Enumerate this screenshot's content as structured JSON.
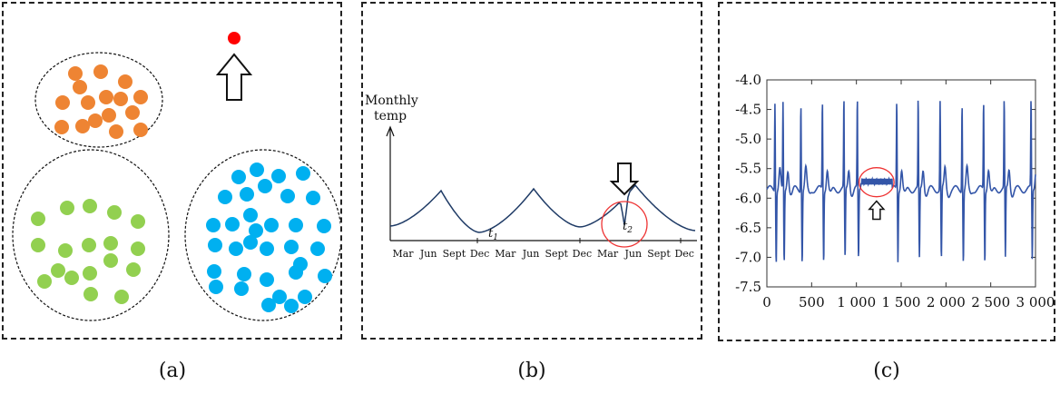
{
  "panel_a": {
    "caption": "(a)",
    "colors": {
      "orange": "#ee8433",
      "green": "#92d050",
      "blue": "#00b0f0",
      "outlier": "#ff0000"
    }
  },
  "panel_b": {
    "caption": "(b)",
    "ylabel_line1": "Monthly",
    "ylabel_line2": "temp",
    "months": [
      "Mar",
      "Jun",
      "Sept",
      "Dec",
      "Mar",
      "Jun",
      "Sept",
      "Dec",
      "Mar",
      "Jun",
      "Sept",
      "Dec"
    ],
    "t1": "t",
    "t1_sub": "1",
    "t2": "t",
    "t2_sub": "2"
  },
  "panel_c": {
    "caption": "(c)",
    "chart_data": {
      "type": "line",
      "xlim": [
        0,
        3000
      ],
      "ylim": [
        -7.5,
        -4.0
      ],
      "xticks": [
        "0",
        "500",
        "1 000",
        "1 500",
        "2 000",
        "2 500",
        "3 000"
      ],
      "yticks": [
        "-4.0",
        "-4.5",
        "-5.0",
        "-5.5",
        "-6.0",
        "-6.5",
        "-7.0",
        "-7.5"
      ],
      "line_color": "#3355a8",
      "anomaly_range": [
        1050,
        1400
      ]
    }
  }
}
